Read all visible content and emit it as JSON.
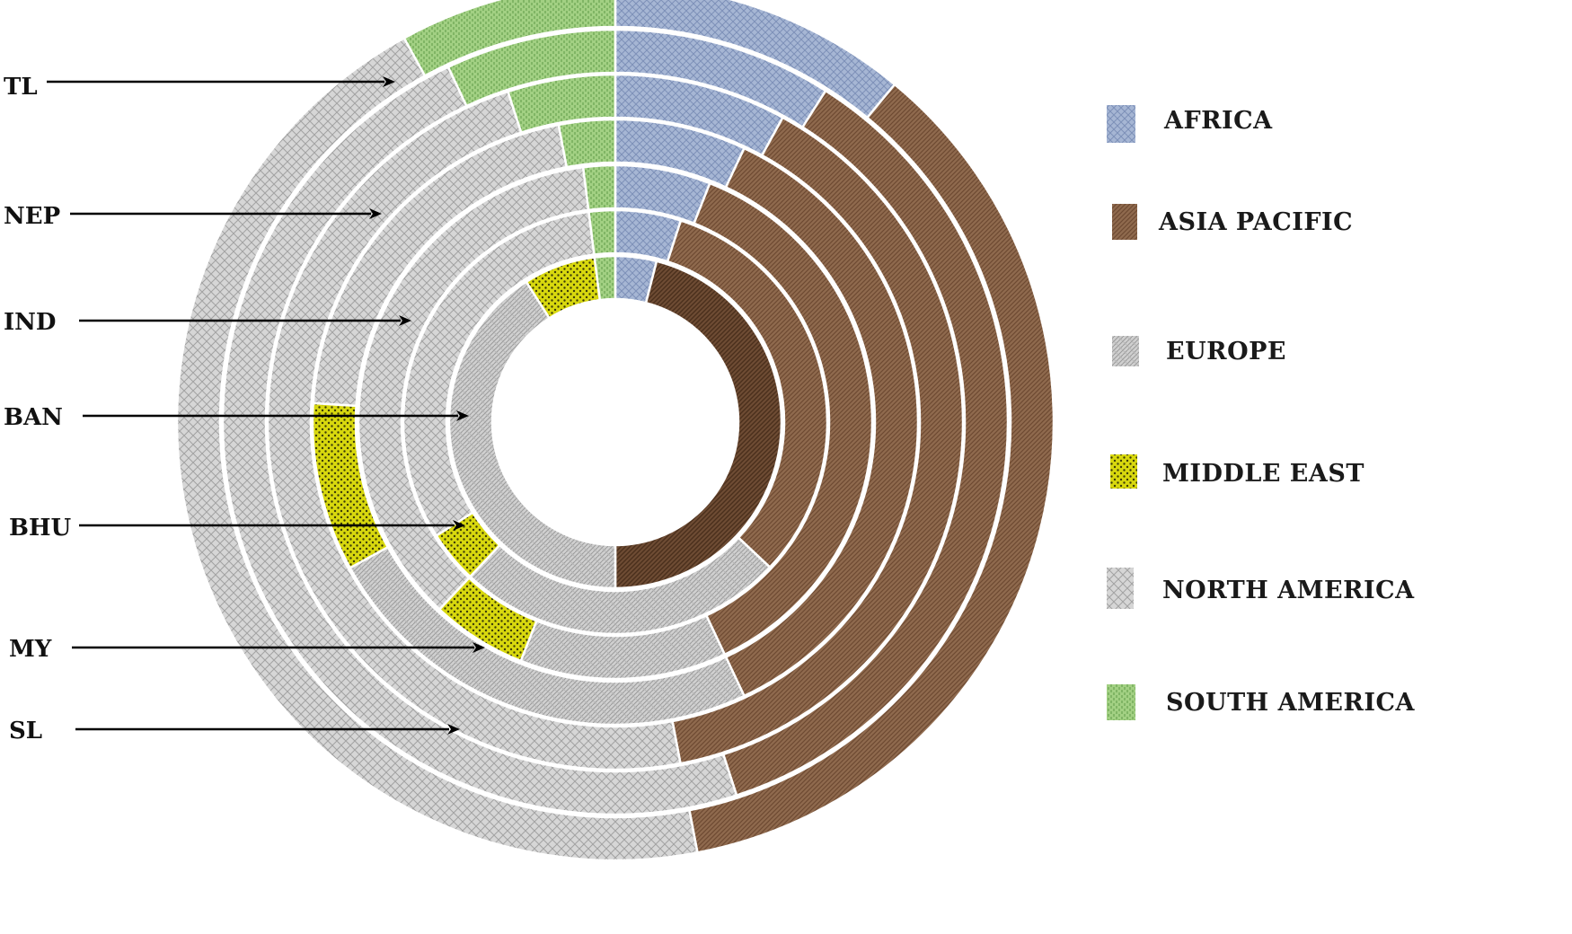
{
  "chart_data": {
    "type": "donut",
    "title": "",
    "units": "",
    "categories": [
      "AFRICA",
      "ASIA PACIFIC",
      "EUROPE",
      "MIDDLE EAST",
      "NORTH AMERICA",
      "SOUTH AMERICA"
    ],
    "colors": {
      "AFRICA": "#a6b6d4",
      "ASIA PACIFIC": "#8c6448",
      "EUROPE": "#c9c9c9",
      "MIDDLE EAST": "#d8d80e",
      "NORTH AMERICA": "#cfcfcf",
      "SOUTH AMERICA": "#9fcf80"
    },
    "series": [
      {
        "name": "TL",
        "values": [
          11,
          36,
          0,
          0,
          45,
          8
        ]
      },
      {
        "name": "NEP",
        "values": [
          9,
          36,
          0,
          0,
          48,
          7
        ]
      },
      {
        "name": "IND",
        "values": [
          8,
          39,
          0,
          0,
          48,
          5
        ]
      },
      {
        "name": "BAN",
        "values": [
          7,
          36,
          24,
          9,
          21,
          3
        ]
      },
      {
        "name": "BHU",
        "values": [
          6,
          37,
          13,
          6,
          36,
          2
        ]
      },
      {
        "name": "MY",
        "values": [
          5,
          32,
          25,
          4,
          32,
          2
        ]
      },
      {
        "name": "SL",
        "values": [
          4,
          46,
          41,
          7,
          0,
          2
        ]
      }
    ],
    "legend": {
      "position": "right",
      "entries": [
        "AFRICA",
        "ASIA PACIFIC",
        "EUROPE",
        "MIDDLE EAST",
        "NORTH AMERICA",
        "SOUTH AMERICA"
      ]
    }
  }
}
